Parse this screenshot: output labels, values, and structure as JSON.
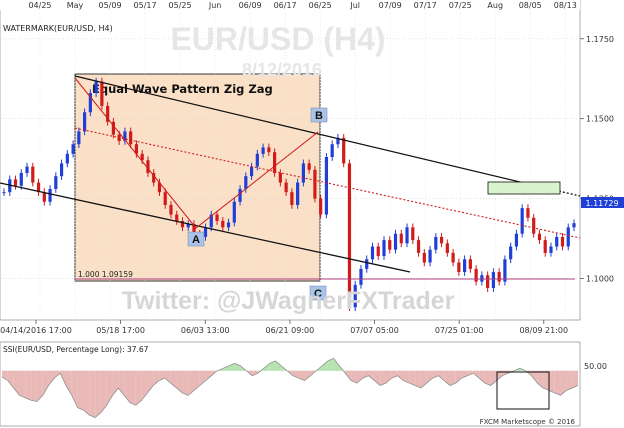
{
  "chart_data": {
    "type": "line",
    "title": "EUR/USD (H4)",
    "subtitle": "8/12/2016",
    "instrument_label": "WATERMARK(EUR/USD, H4)",
    "pattern_label": "Equal Wave Pattern Zig Zag",
    "fib_label": "1.000 1.09159",
    "wave_labels": [
      "A",
      "B",
      "C"
    ],
    "twitter_watermark": "Twitter: @JWagnerFXTrader",
    "copyright": "FXCM Marketscope © 2016",
    "last_price_label": "1.11729",
    "top_ticks": [
      "04/25",
      "May",
      "05/09",
      "05/17",
      "05/25",
      "Jun",
      "06/09",
      "06/17",
      "06/25",
      "Jul",
      "07/09",
      "07/17",
      "07/25",
      "Aug",
      "08/05",
      "08/13"
    ],
    "bottom_ticks": [
      "04/14/2016 17:00",
      "05/18 17:00",
      "06/03 13:00",
      "06/21 09:00",
      "07/07 05:00",
      "07/25 01:00",
      "08/09 21:00"
    ],
    "yticks": [
      "1.1750",
      "1.1500",
      "1.1250",
      "1.1000"
    ],
    "ylim": [
      1.087,
      1.184
    ],
    "series": [
      {
        "name": "EUR/USD",
        "color": "#1f3fd6",
        "values": [
          1.127,
          1.131,
          1.129,
          1.133,
          1.135,
          1.13,
          1.127,
          1.124,
          1.128,
          1.132,
          1.136,
          1.139,
          1.142,
          1.146,
          1.152,
          1.158,
          1.1616,
          1.154,
          1.149,
          1.145,
          1.143,
          1.146,
          1.142,
          1.139,
          1.137,
          1.133,
          1.13,
          1.127,
          1.123,
          1.12,
          1.118,
          1.116,
          1.117,
          1.114,
          1.113,
          1.116,
          1.12,
          1.118,
          1.116,
          1.1175,
          1.124,
          1.128,
          1.132,
          1.135,
          1.139,
          1.141,
          1.1395,
          1.133,
          1.13,
          1.127,
          1.123,
          1.13,
          1.136,
          1.134,
          1.125,
          1.12,
          1.138,
          1.142,
          1.144,
          1.136,
          1.091,
          1.098,
          1.103,
          1.106,
          1.11,
          1.107,
          1.112,
          1.109,
          1.114,
          1.111,
          1.116,
          1.112,
          1.108,
          1.105,
          1.109,
          1.113,
          1.111,
          1.108,
          1.105,
          1.102,
          1.106,
          1.103,
          1.099,
          1.101,
          1.097,
          1.102,
          1.099,
          1.106,
          1.11,
          1.114,
          1.122,
          1.119,
          1.114,
          1.112,
          1.108,
          1.11,
          1.113,
          1.11,
          1.116,
          1.1173
        ]
      }
    ],
    "ssi": {
      "label": "SSI(EUR/USD, Percentage Long): 37.67",
      "ytick": "50.00",
      "values": [
        45,
        42,
        36,
        30,
        28,
        26,
        25,
        30,
        38,
        44,
        48,
        38,
        30,
        20,
        18,
        14,
        12,
        16,
        22,
        30,
        36,
        30,
        24,
        22,
        26,
        32,
        38,
        42,
        44,
        40,
        36,
        32,
        30,
        34,
        38,
        42,
        46,
        50,
        52,
        54,
        56,
        54,
        50,
        46,
        48,
        52,
        56,
        58,
        54,
        50,
        46,
        44,
        42,
        46,
        50,
        54,
        58,
        60,
        54,
        48,
        42,
        40,
        44,
        46,
        42,
        38,
        40,
        44,
        46,
        42,
        40,
        38,
        36,
        40,
        44,
        46,
        42,
        38,
        40,
        44,
        46,
        48,
        44,
        40,
        38,
        42,
        46,
        48,
        50,
        52,
        50,
        46,
        40,
        36,
        34,
        32,
        30,
        34,
        36,
        38
      ]
    },
    "colors": {
      "price_up": "#1f3fd6",
      "price_down": "#d11a1a",
      "pattern_box": "#fbe0c8",
      "wave_line": "#d11a1a",
      "ssi_above": "#b6e3b0",
      "ssi_below": "#e8b9b6"
    }
  }
}
